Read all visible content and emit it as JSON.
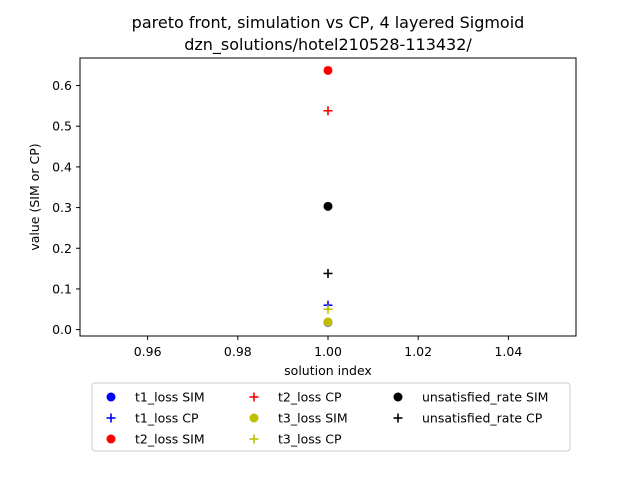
{
  "chart_data": {
    "type": "scatter",
    "title": "pareto front, simulation vs CP, 4 layered Sigmoid",
    "subtitle": "dzn_solutions/hotel210528-113432/",
    "xlabel": "solution index",
    "ylabel": "value (SIM or CP)",
    "xlim": [
      0.945,
      1.055
    ],
    "ylim": [
      -0.0157,
      0.6677
    ],
    "x_ticks": [
      0.96,
      0.98,
      1.0,
      1.02,
      1.04
    ],
    "x_tick_labels": [
      "0.96",
      "0.98",
      "1.00",
      "1.02",
      "1.04"
    ],
    "y_ticks": [
      0.0,
      0.1,
      0.2,
      0.3,
      0.4,
      0.5,
      0.6
    ],
    "y_tick_labels": [
      "0.0",
      "0.1",
      "0.2",
      "0.3",
      "0.4",
      "0.5",
      "0.6"
    ],
    "grid": false,
    "legend_placement": "below",
    "series": [
      {
        "name": "t1_loss SIM",
        "marker": "circle",
        "color": "#0000ff",
        "x": [
          1.0
        ],
        "y": [
          0.018
        ]
      },
      {
        "name": "t1_loss CP",
        "marker": "plus",
        "color": "#0000ff",
        "x": [
          1.0
        ],
        "y": [
          0.06
        ]
      },
      {
        "name": "t2_loss SIM",
        "marker": "circle",
        "color": "#ff0000",
        "x": [
          1.0
        ],
        "y": [
          0.637
        ]
      },
      {
        "name": "t2_loss CP",
        "marker": "plus",
        "color": "#ff0000",
        "x": [
          1.0
        ],
        "y": [
          0.538
        ]
      },
      {
        "name": "t3_loss SIM",
        "marker": "circle",
        "color": "#bfbf00",
        "x": [
          1.0
        ],
        "y": [
          0.019
        ]
      },
      {
        "name": "t3_loss CP",
        "marker": "plus",
        "color": "#bfbf00",
        "x": [
          1.0
        ],
        "y": [
          0.05
        ]
      },
      {
        "name": "unsatisfied_rate SIM",
        "marker": "circle",
        "color": "#000000",
        "x": [
          1.0
        ],
        "y": [
          0.303
        ]
      },
      {
        "name": "unsatisfied_rate CP",
        "marker": "plus",
        "color": "#000000",
        "x": [
          1.0
        ],
        "y": [
          0.138
        ]
      }
    ]
  }
}
